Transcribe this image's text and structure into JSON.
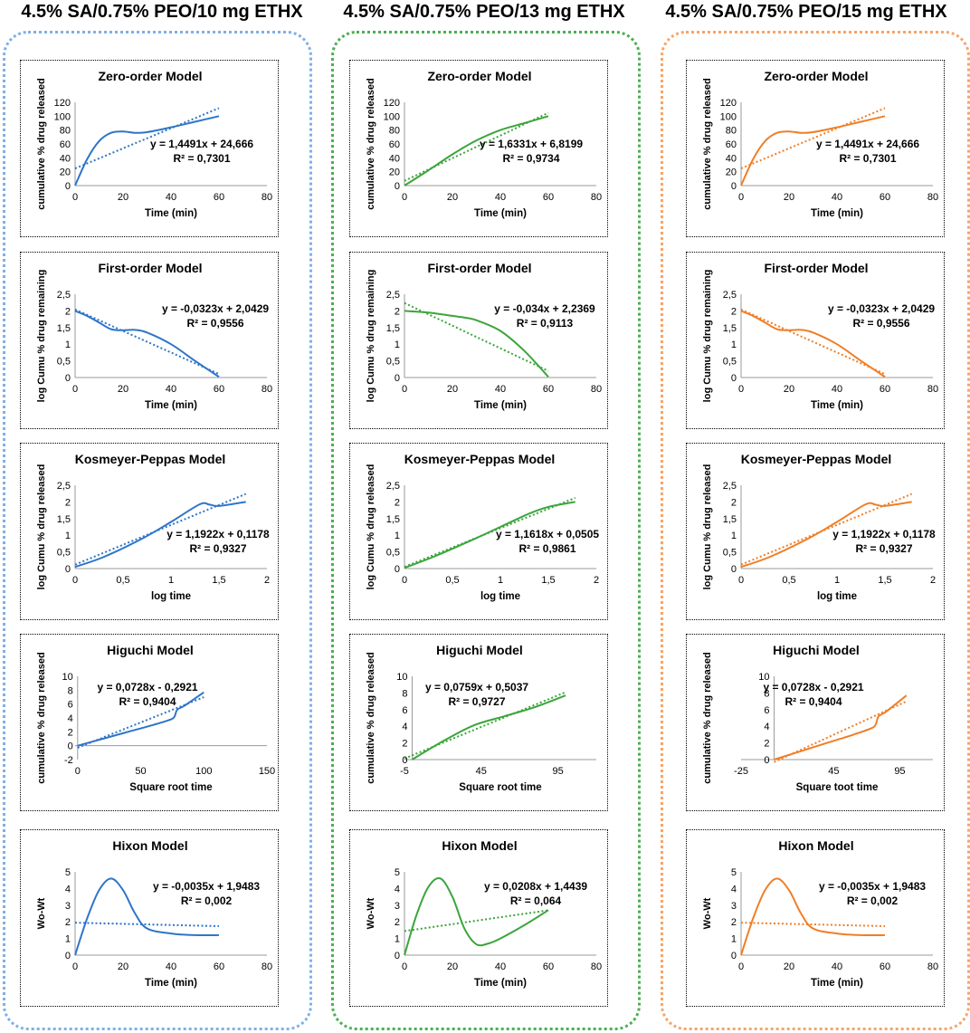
{
  "columns": [
    {
      "title": "4.5% SA/0.75% PEO/10 mg ETHX",
      "color": "#2E75C9",
      "border_color": "#7FB0E6",
      "charts": [
        {
          "type": "line",
          "title": "Zero-order Model",
          "xlabel": "Time (min)",
          "ylabel": "cumulative % drug released",
          "xlim": [
            0,
            80
          ],
          "xticks": [
            "0",
            "20",
            "40",
            "60",
            "80"
          ],
          "ylim": [
            0,
            120
          ],
          "yticks": [
            "0",
            "20",
            "40",
            "60",
            "80",
            "100",
            "120"
          ],
          "equation": "y = 1,4491x + 24,666",
          "r2": "R² = 0,7301",
          "series": {
            "x": [
              0,
              5,
              10,
              15,
              20,
              25,
              30,
              40,
              50,
              60
            ],
            "y": [
              0,
              38,
              64,
              76,
              78,
              76,
              77,
              84,
              92,
              100
            ]
          },
          "trend": {
            "x": [
              0,
              60
            ],
            "y": [
              24.666,
              111.61
            ]
          }
        },
        {
          "type": "line",
          "title": "First-order Model",
          "xlabel": "Time (min)",
          "ylabel": "log Cumu % drug remaining",
          "xlim": [
            0,
            80
          ],
          "xticks": [
            "0",
            "20",
            "40",
            "60",
            "80"
          ],
          "ylim": [
            0,
            2.5
          ],
          "yticks": [
            "0",
            "0,5",
            "1",
            "1,5",
            "2",
            "2,5"
          ],
          "equation": "y = -0,0323x + 2,0429",
          "r2": "R² = 0,9556",
          "series": {
            "x": [
              0,
              5,
              10,
              15,
              20,
              25,
              30,
              40,
              50,
              60
            ],
            "y": [
              2,
              1.85,
              1.65,
              1.45,
              1.42,
              1.43,
              1.35,
              1.0,
              0.5,
              0.02
            ]
          },
          "trend": {
            "x": [
              0,
              60
            ],
            "y": [
              2.0429,
              0.1049
            ]
          }
        },
        {
          "type": "line",
          "title": "Kosmeyer-Peppas Model",
          "xlabel": "log time",
          "ylabel": "log Cumu % drug released",
          "xlim": [
            0,
            2
          ],
          "xticks": [
            "0",
            "0,5",
            "1",
            "1,5",
            "2"
          ],
          "ylim": [
            0,
            2.5
          ],
          "yticks": [
            "0",
            "0,5",
            "1",
            "1,5",
            "2",
            "2,5"
          ],
          "equation": "y = 1,1922x + 0,1178",
          "r2": "R² = 0,9327",
          "series": {
            "x": [
              0,
              0.3,
              0.7,
              1.0,
              1.3,
              1.4,
              1.5,
              1.78
            ],
            "y": [
              0.05,
              0.35,
              0.9,
              1.4,
              1.93,
              1.92,
              1.88,
              2.0
            ]
          },
          "trend": {
            "x": [
              0,
              1.78
            ],
            "y": [
              0.1178,
              2.24
            ]
          }
        },
        {
          "type": "line",
          "title": "Higuchi Model",
          "xlabel": "Square root time",
          "ylabel": "cumulative % drug released",
          "xlim": [
            -2,
            150
          ],
          "xticks": [
            "0",
            "50",
            "100",
            "150"
          ],
          "xtickvals": [
            0,
            50,
            100,
            150
          ],
          "ylim": [
            -2,
            10
          ],
          "yticks": [
            "-2",
            "0",
            "2",
            "4",
            "6",
            "8",
            "10"
          ],
          "equation": "y = 0,0728x - 0,2921",
          "r2": "R² = 0,9404",
          "series": {
            "x": [
              0,
              20,
              40,
              60,
              74,
              77,
              79,
              85,
              100
            ],
            "y": [
              0,
              1,
              2,
              3,
              3.8,
              4.3,
              5.2,
              5.8,
              7.7
            ]
          },
          "trend": {
            "x": [
              0,
              100
            ],
            "y": [
              -0.2921,
              6.99
            ]
          }
        },
        {
          "type": "line",
          "title": "Hixon Model",
          "xlabel": "Time (min)",
          "ylabel": "Wo-Wt",
          "xlim": [
            0,
            80
          ],
          "xticks": [
            "0",
            "20",
            "40",
            "60",
            "80"
          ],
          "ylim": [
            0,
            5
          ],
          "yticks": [
            "0",
            "1",
            "2",
            "3",
            "4",
            "5"
          ],
          "equation": "y = -0,0035x + 1,9483",
          "r2": "R² = 0,002",
          "series": {
            "x": [
              0,
              5,
              10,
              15,
              20,
              25,
              30,
              40,
              50,
              60
            ],
            "y": [
              0,
              2.2,
              3.9,
              4.6,
              3.9,
              2.5,
              1.6,
              1.3,
              1.2,
              1.2
            ]
          },
          "trend": {
            "x": [
              0,
              60
            ],
            "y": [
              1.9483,
              1.7383
            ]
          }
        }
      ]
    },
    {
      "title": "4.5% SA/0.75% PEO/13 mg ETHX",
      "color": "#3BA53B",
      "border_color": "#4CAF50",
      "charts": [
        {
          "type": "line",
          "title": "Zero-order Model",
          "xlabel": "Time (min)",
          "ylabel": "cumulative % drug released",
          "xlim": [
            0,
            80
          ],
          "xticks": [
            "0",
            "20",
            "40",
            "60",
            "80"
          ],
          "ylim": [
            0,
            120
          ],
          "yticks": [
            "0",
            "20",
            "40",
            "60",
            "80",
            "100",
            "120"
          ],
          "equation": "y = 1,6331x + 6,8199",
          "r2": "R² = 0,9734",
          "series": {
            "x": [
              0,
              10,
              20,
              30,
              40,
              50,
              60
            ],
            "y": [
              0,
              22,
              45,
              65,
              80,
              90,
              100
            ]
          },
          "trend": {
            "x": [
              0,
              60
            ],
            "y": [
              6.8199,
              104.8
            ]
          }
        },
        {
          "type": "line",
          "title": "First-order Model",
          "xlabel": "Time (min)",
          "ylabel": "log Cumu % drug remaining",
          "xlim": [
            0,
            80
          ],
          "xticks": [
            "0",
            "20",
            "40",
            "60",
            "80"
          ],
          "ylim": [
            0,
            2.5
          ],
          "yticks": [
            "0",
            "0,5",
            "1",
            "1,5",
            "2",
            "2,5"
          ],
          "equation": "y = -0,034x + 2,2369",
          "r2": "R² = 0,9113",
          "series": {
            "x": [
              0,
              10,
              20,
              25,
              30,
              40,
              50,
              60
            ],
            "y": [
              2,
              1.95,
              1.85,
              1.8,
              1.72,
              1.4,
              0.8,
              0.02
            ]
          },
          "trend": {
            "x": [
              0,
              60
            ],
            "y": [
              2.2369,
              0.1969
            ]
          }
        },
        {
          "type": "line",
          "title": "Kosmeyer-Peppas Model",
          "xlabel": "log time",
          "ylabel": "log Cumu % drug released",
          "xlim": [
            0,
            2
          ],
          "xticks": [
            "0",
            "0,5",
            "1",
            "1,5",
            "2"
          ],
          "ylim": [
            0,
            2.5
          ],
          "yticks": [
            "0",
            "0,5",
            "1",
            "1,5",
            "2",
            "2,5"
          ],
          "equation": "y = 1,1618x + 0,0505",
          "r2": "R² = 0,9861",
          "series": {
            "x": [
              0,
              0.3,
              0.7,
              1.0,
              1.3,
              1.5,
              1.78
            ],
            "y": [
              0.02,
              0.35,
              0.85,
              1.25,
              1.65,
              1.85,
              2.0
            ]
          },
          "trend": {
            "x": [
              0,
              1.78
            ],
            "y": [
              0.0505,
              2.12
            ]
          }
        },
        {
          "type": "line",
          "title": "Higuchi Model",
          "xlabel": "Square root time",
          "ylabel": "cumulative % drug released",
          "xlim": [
            -5,
            120
          ],
          "xticks": [
            "-5",
            "45",
            "95"
          ],
          "xtickvals": [
            -5,
            45,
            95
          ],
          "ylim": [
            0,
            10
          ],
          "yticks": [
            "0",
            "2",
            "4",
            "6",
            "8",
            "10"
          ],
          "equation": "y = 0,0759x + 0,5037",
          "r2": "R² = 0,9727",
          "series": {
            "x": [
              0,
              20,
              40,
              60,
              80,
              100
            ],
            "y": [
              0,
              2.2,
              4.1,
              5.2,
              6.3,
              7.7
            ]
          },
          "trend": {
            "x": [
              -5,
              100
            ],
            "y": [
              0.1242,
              8.094
            ]
          }
        },
        {
          "type": "line",
          "title": "Hixon Model",
          "xlabel": "Time (min)",
          "ylabel": "Wo-Wt",
          "xlim": [
            0,
            80
          ],
          "xticks": [
            "0",
            "20",
            "40",
            "60",
            "80"
          ],
          "ylim": [
            0,
            5
          ],
          "yticks": [
            "0",
            "1",
            "2",
            "3",
            "4",
            "5"
          ],
          "equation": "y = 0,0208x + 1,4439",
          "r2": "R² = 0,064",
          "series": {
            "x": [
              0,
              5,
              10,
              15,
              20,
              25,
              30,
              35,
              40,
              50,
              60
            ],
            "y": [
              0,
              2.4,
              4.1,
              4.6,
              3.5,
              1.6,
              0.65,
              0.7,
              1.0,
              1.8,
              2.7
            ]
          },
          "trend": {
            "x": [
              0,
              60
            ],
            "y": [
              1.4439,
              2.6919
            ]
          }
        }
      ]
    },
    {
      "title": "4.5% SA/0.75% PEO/15 mg ETHX",
      "color": "#F07E26",
      "border_color": "#F6A56A",
      "charts": [
        {
          "type": "line",
          "title": "Zero-order Model",
          "xlabel": "Time (min)",
          "ylabel": "cumulative % drug released",
          "xlim": [
            0,
            80
          ],
          "xticks": [
            "0",
            "20",
            "40",
            "60",
            "80"
          ],
          "ylim": [
            0,
            120
          ],
          "yticks": [
            "0",
            "20",
            "40",
            "60",
            "80",
            "100",
            "120"
          ],
          "equation": "y = 1,4491x + 24,666",
          "r2": "R² = 0,7301",
          "series": {
            "x": [
              0,
              5,
              10,
              15,
              20,
              25,
              30,
              40,
              50,
              60
            ],
            "y": [
              0,
              38,
              64,
              76,
              78,
              76,
              77,
              84,
              92,
              100
            ]
          },
          "trend": {
            "x": [
              0,
              60
            ],
            "y": [
              24.666,
              111.61
            ]
          }
        },
        {
          "type": "line",
          "title": "First-order Model",
          "xlabel": "Time (min)",
          "ylabel": "log Cumu % drug remaining",
          "xlim": [
            0,
            80
          ],
          "xticks": [
            "0",
            "20",
            "40",
            "60",
            "80"
          ],
          "ylim": [
            0,
            2.5
          ],
          "yticks": [
            "0",
            "0,5",
            "1",
            "1,5",
            "2",
            "2,5"
          ],
          "equation": "y = -0,0323x + 2,0429",
          "r2": "R² = 0,9556",
          "series": {
            "x": [
              0,
              5,
              10,
              15,
              20,
              25,
              30,
              40,
              50,
              60
            ],
            "y": [
              2,
              1.85,
              1.65,
              1.45,
              1.42,
              1.43,
              1.35,
              1.0,
              0.5,
              0.02
            ]
          },
          "trend": {
            "x": [
              0,
              60
            ],
            "y": [
              2.0429,
              0.1049
            ]
          }
        },
        {
          "type": "line",
          "title": "Kosmeyer-Peppas Model",
          "xlabel": "log time",
          "ylabel": "log Cumu % drug released",
          "xlim": [
            0,
            2
          ],
          "xticks": [
            "0",
            "0,5",
            "1",
            "1,5",
            "2"
          ],
          "ylim": [
            0,
            2.5
          ],
          "yticks": [
            "0",
            "0,5",
            "1",
            "1,5",
            "2",
            "2,5"
          ],
          "equation": "y = 1,1922x + 0,1178",
          "r2": "R² = 0,9327",
          "series": {
            "x": [
              0,
              0.3,
              0.7,
              1.0,
              1.3,
              1.4,
              1.5,
              1.78
            ],
            "y": [
              0.05,
              0.35,
              0.9,
              1.4,
              1.93,
              1.92,
              1.88,
              2.0
            ]
          },
          "trend": {
            "x": [
              0,
              1.78
            ],
            "y": [
              0.1178,
              2.24
            ]
          }
        },
        {
          "type": "line",
          "title": "Higuchi Model",
          "xlabel": "Square toot time",
          "ylabel": "cumulative % drug released",
          "xlim": [
            -25,
            120
          ],
          "xticks": [
            "-25",
            "45",
            "95"
          ],
          "xtickvals": [
            -25,
            45,
            95
          ],
          "ylim": [
            0,
            10
          ],
          "yticks": [
            "0",
            "2",
            "4",
            "6",
            "8",
            "10"
          ],
          "equation": "y = 0,0728x - 0,2921",
          "r2": "R² = 0,9404",
          "series": {
            "x": [
              0,
              20,
              40,
              60,
              74,
              77,
              79,
              85,
              100
            ],
            "y": [
              0,
              1,
              2,
              3,
              3.8,
              4.3,
              5.2,
              5.8,
              7.7
            ]
          },
          "trend": {
            "x": [
              0,
              100
            ],
            "y": [
              -0.2921,
              6.99
            ]
          }
        },
        {
          "type": "line",
          "title": "Hixon Model",
          "xlabel": "Time (min)",
          "ylabel": "Wo-Wt",
          "xlim": [
            0,
            80
          ],
          "xticks": [
            "0",
            "20",
            "40",
            "60",
            "80"
          ],
          "ylim": [
            0,
            5
          ],
          "yticks": [
            "0",
            "1",
            "2",
            "3",
            "4",
            "5"
          ],
          "equation": "y = -0,0035x + 1,9483",
          "r2": "R² = 0,002",
          "series": {
            "x": [
              0,
              5,
              10,
              15,
              20,
              25,
              30,
              40,
              50,
              60
            ],
            "y": [
              0,
              2.2,
              3.9,
              4.6,
              3.9,
              2.5,
              1.6,
              1.3,
              1.2,
              1.2
            ]
          },
          "trend": {
            "x": [
              0,
              60
            ],
            "y": [
              1.9483,
              1.7383
            ]
          }
        }
      ]
    }
  ]
}
